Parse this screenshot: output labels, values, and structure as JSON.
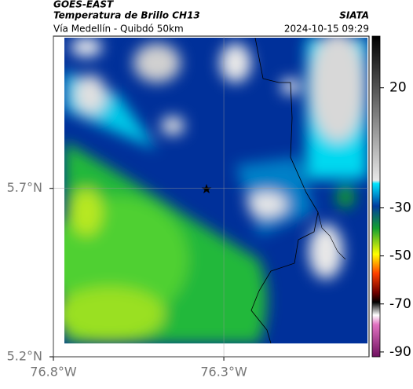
{
  "header": {
    "platform": "GOES-EAST",
    "product": "Temperatura de Brillo CH13",
    "source": "SIATA",
    "region": "Vía Medellín - Quibdó 50km",
    "timestamp": "2024-10-15 09:29"
  },
  "map": {
    "xlim": [
      -76.8,
      -75.874
    ],
    "ylim": [
      5.2,
      6.152
    ],
    "xticks": [
      {
        "value": -76.8,
        "label": "76.8°W"
      },
      {
        "value": -76.3,
        "label": "76.3°W"
      }
    ],
    "yticks": [
      {
        "value": 5.2,
        "label": "5.2°N"
      },
      {
        "value": 5.7,
        "label": "5.7°N"
      }
    ],
    "grid": true
  },
  "colorbar": {
    "clim": [
      -92,
      41.5
    ],
    "ticks": [
      20,
      -30,
      -50,
      -70,
      -90
    ]
  }
}
